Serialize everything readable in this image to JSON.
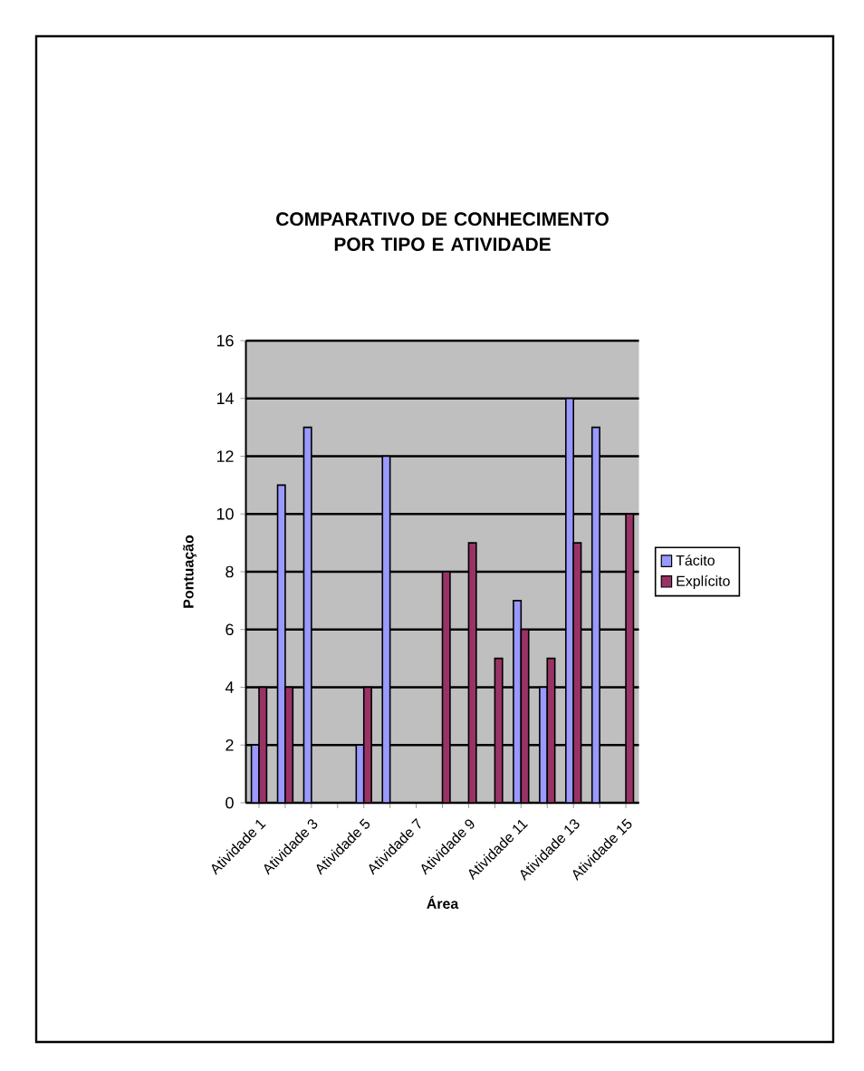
{
  "chart_data": {
    "type": "bar",
    "title": "COMPARATIVO DE CONHECIMENTO POR TIPO E ATIVIDADE",
    "xlabel": "Área",
    "ylabel": "Pontuação",
    "categories": [
      "Atividade 1",
      null,
      "Atividade 3",
      null,
      "Atividade 5",
      null,
      "Atividade 7",
      null,
      "Atividade 9",
      null,
      "Atividade 11",
      null,
      "Atividade 13",
      null,
      "Atividade 15"
    ],
    "series": [
      {
        "name": "Tácito",
        "color": "#9999ff",
        "values": [
          2,
          11,
          13,
          null,
          2,
          12,
          null,
          null,
          null,
          null,
          7,
          4,
          14,
          13,
          null
        ]
      },
      {
        "name": "Explícito",
        "color": "#993366",
        "values": [
          4,
          4,
          null,
          null,
          4,
          null,
          null,
          8,
          9,
          5,
          6,
          5,
          9,
          null,
          10
        ]
      }
    ],
    "ylim": [
      0,
      16
    ],
    "yticks": [
      0,
      2,
      4,
      6,
      8,
      10,
      12,
      14,
      16
    ],
    "grid": "y",
    "legend": "right"
  }
}
